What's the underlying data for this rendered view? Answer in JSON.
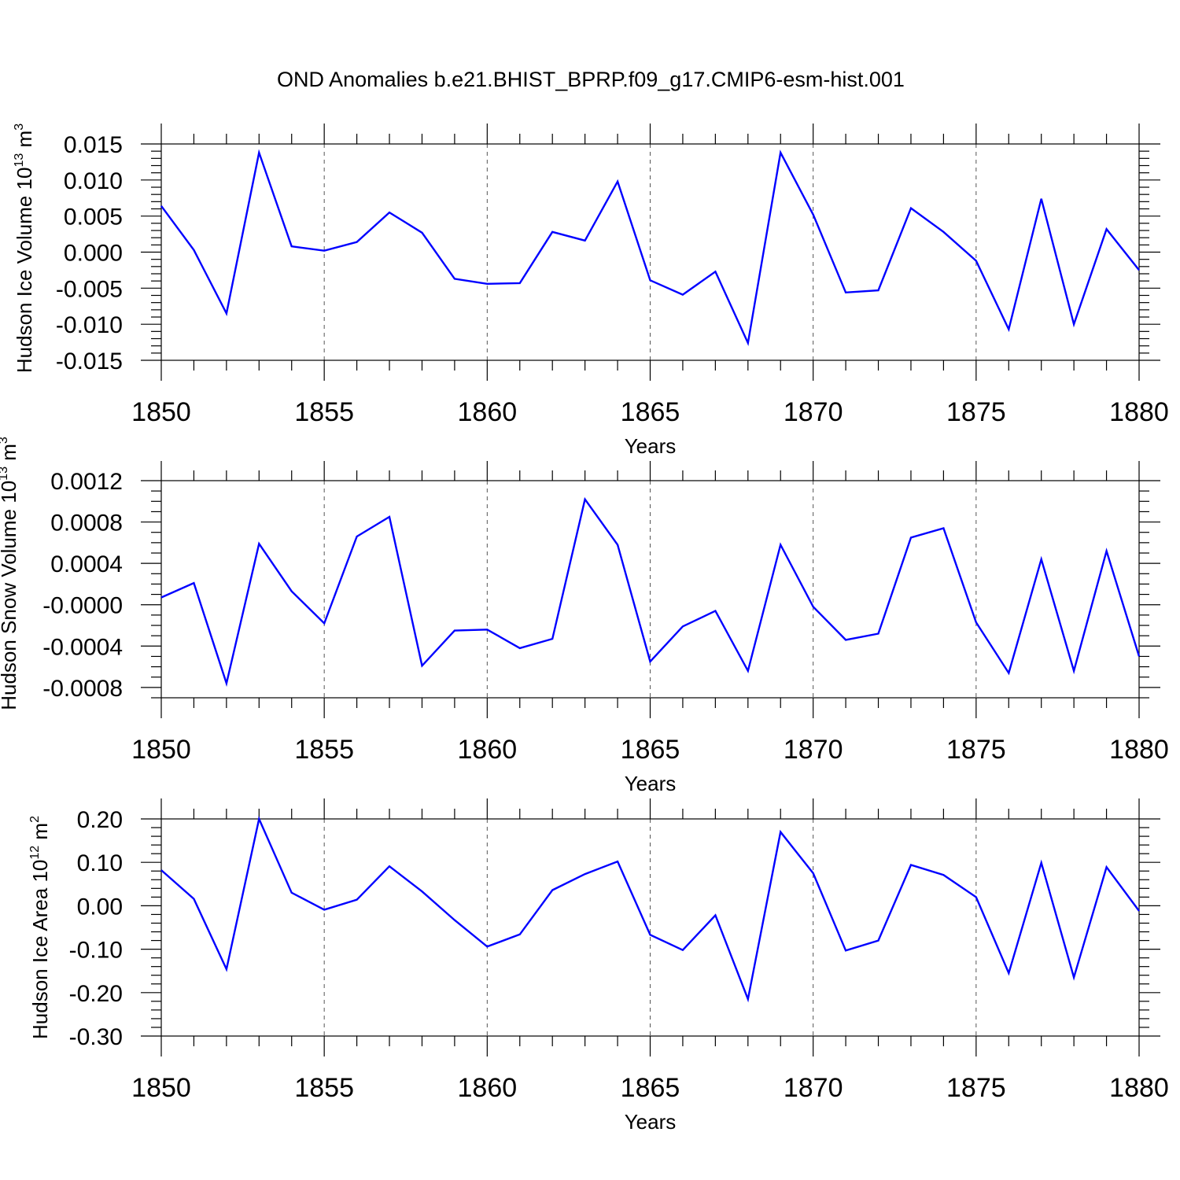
{
  "figure": {
    "title": "OND Anomalies b.e21.BHIST_BPRP.f09_g17.CMIP6-esm-hist.001",
    "line_color": "#0000ff"
  },
  "chart_data": [
    {
      "type": "line",
      "title": "OND Anomalies b.e21.BHIST_BPRP.f09_g17.CMIP6-esm-hist.001",
      "xlabel": "Years",
      "ylabel": "Hudson Ice Volume 10",
      "ylabel_sup": "13",
      "ylabel_unit": "m",
      "ylabel_unit_sup": "3",
      "xlim": [
        1850,
        1880
      ],
      "ylim": [
        -0.015,
        0.015
      ],
      "x_ticks": [
        1850,
        1855,
        1860,
        1865,
        1870,
        1875,
        1880
      ],
      "y_ticks": [
        -0.015,
        -0.01,
        -0.005,
        0.0,
        0.005,
        0.01,
        0.015
      ],
      "y_tick_labels": [
        "-0.015",
        "-0.010",
        "-0.005",
        "0.000",
        "0.005",
        "0.010",
        "0.015"
      ],
      "x_minor_step": 1,
      "y_minor_step": 0.001,
      "grid": "vertical dashed at major x ticks",
      "x": [
        1850,
        1851,
        1852,
        1853,
        1854,
        1855,
        1856,
        1857,
        1858,
        1859,
        1860,
        1861,
        1862,
        1863,
        1864,
        1865,
        1866,
        1867,
        1868,
        1869,
        1870,
        1871,
        1872,
        1873,
        1874,
        1875,
        1876,
        1877,
        1878,
        1879,
        1880
      ],
      "series": [
        {
          "values": [
            0.0064,
            0.0003,
            -0.0085,
            0.0138,
            0.0008,
            0.0002,
            0.0014,
            0.0055,
            0.0027,
            -0.0037,
            -0.0044,
            -0.0043,
            0.0028,
            0.0016,
            0.0098,
            -0.0039,
            -0.0059,
            -0.0027,
            -0.0126,
            0.0138,
            0.0052,
            -0.0056,
            -0.0053,
            0.0061,
            0.0028,
            -0.0012,
            -0.0107,
            0.0074,
            -0.01,
            0.0032,
            -0.0025
          ]
        }
      ]
    },
    {
      "type": "line",
      "xlabel": "Years",
      "ylabel": "Hudson Snow Volume 10",
      "ylabel_sup": "13",
      "ylabel_unit": "m",
      "ylabel_unit_sup": "3",
      "xlim": [
        1850,
        1880
      ],
      "ylim": [
        -0.0009,
        0.0012
      ],
      "x_ticks": [
        1850,
        1855,
        1860,
        1865,
        1870,
        1875,
        1880
      ],
      "y_ticks": [
        -0.0008,
        -0.0004,
        0.0,
        0.0004,
        0.0008,
        0.0012
      ],
      "y_tick_labels": [
        "-0.0008",
        "-0.0004",
        "-0.0000",
        "0.0004",
        "0.0008",
        "0.0012"
      ],
      "x_minor_step": 1,
      "y_minor_step": 0.0001,
      "grid": "vertical dashed at major x ticks",
      "x": [
        1850,
        1851,
        1852,
        1853,
        1854,
        1855,
        1856,
        1857,
        1858,
        1859,
        1860,
        1861,
        1862,
        1863,
        1864,
        1865,
        1866,
        1867,
        1868,
        1869,
        1870,
        1871,
        1872,
        1873,
        1874,
        1875,
        1876,
        1877,
        1878,
        1879,
        1880
      ],
      "series": [
        {
          "values": [
            7e-05,
            0.00021,
            -0.00076,
            0.00059,
            0.00013,
            -0.00018,
            0.00066,
            0.00085,
            -0.00059,
            -0.00025,
            -0.00024,
            -0.00042,
            -0.00033,
            0.00102,
            0.00058,
            -0.00055,
            -0.00021,
            -6e-05,
            -0.00064,
            0.00058,
            -2e-05,
            -0.00034,
            -0.00028,
            0.00065,
            0.00074,
            -0.00017,
            -0.00066,
            0.00044,
            -0.00064,
            0.00052,
            -0.0005
          ]
        }
      ]
    },
    {
      "type": "line",
      "xlabel": "Years",
      "ylabel": "Hudson Ice Area 10",
      "ylabel_sup": "12",
      "ylabel_unit": "m",
      "ylabel_unit_sup": "2",
      "xlim": [
        1850,
        1880
      ],
      "ylim": [
        -0.3,
        0.2
      ],
      "x_ticks": [
        1850,
        1855,
        1860,
        1865,
        1870,
        1875,
        1880
      ],
      "y_ticks": [
        -0.3,
        -0.2,
        -0.1,
        0.0,
        0.1,
        0.2
      ],
      "y_tick_labels": [
        "-0.30",
        "-0.20",
        "-0.10",
        "0.00",
        "0.10",
        "0.20"
      ],
      "x_minor_step": 1,
      "y_minor_step": 0.02,
      "grid": "vertical dashed at major x ticks",
      "x": [
        1850,
        1851,
        1852,
        1853,
        1854,
        1855,
        1856,
        1857,
        1858,
        1859,
        1860,
        1861,
        1862,
        1863,
        1864,
        1865,
        1866,
        1867,
        1868,
        1869,
        1870,
        1871,
        1872,
        1873,
        1874,
        1875,
        1876,
        1877,
        1878,
        1879,
        1880
      ],
      "series": [
        {
          "values": [
            0.082,
            0.016,
            -0.146,
            0.2,
            0.03,
            -0.009,
            0.014,
            0.091,
            0.033,
            -0.033,
            -0.094,
            -0.066,
            0.036,
            0.073,
            0.102,
            -0.067,
            -0.102,
            -0.022,
            -0.215,
            0.17,
            0.075,
            -0.103,
            -0.08,
            0.094,
            0.071,
            0.02,
            -0.155,
            0.099,
            -0.165,
            0.089,
            -0.012
          ]
        }
      ]
    }
  ]
}
